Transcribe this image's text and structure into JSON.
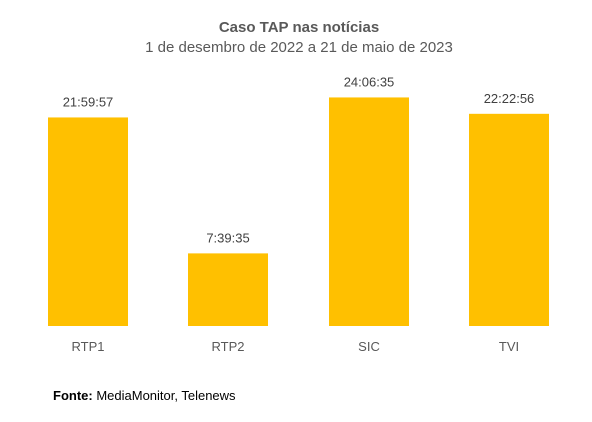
{
  "chart_data": {
    "type": "bar",
    "title": "Caso TAP nas notícias",
    "subtitle": "1 de desembro de 2022 a 21 de maio de 2023",
    "categories": [
      "RTP1",
      "RTP2",
      "SIC",
      "TVI"
    ],
    "values": [
      79197,
      27575,
      86795,
      80576
    ],
    "data_labels": [
      "21:59:57",
      "7:39:35",
      "24:06:35",
      "22:22:56"
    ],
    "xlabel": "",
    "ylabel": "",
    "ylim": [
      0,
      90000
    ],
    "grid": false,
    "bar_color": "#FFC000"
  },
  "source": {
    "label": "Fonte:",
    "text": " MediaMonitor, Telenews"
  }
}
